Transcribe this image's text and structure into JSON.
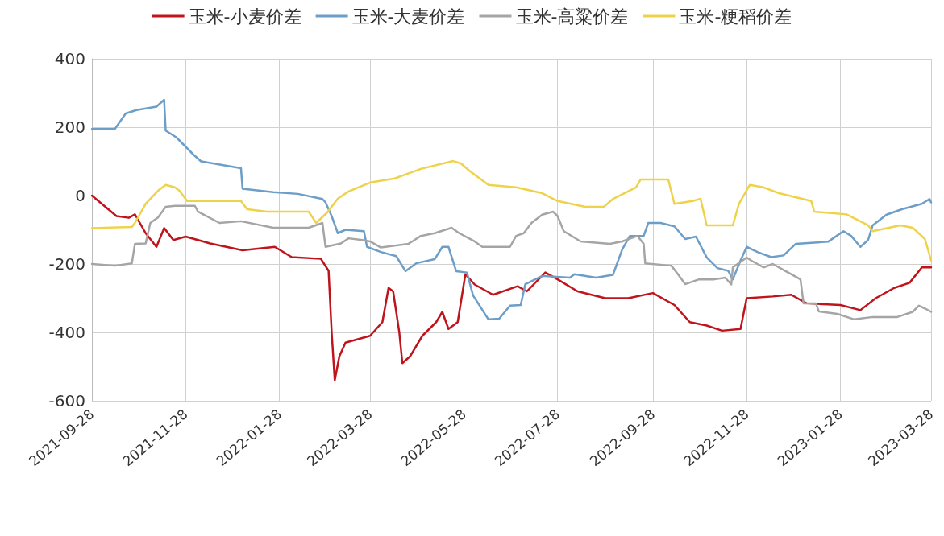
{
  "chart_data": {
    "type": "line",
    "xlim": [
      "2021-09-28",
      "2023-03-28"
    ],
    "xticks": [
      "2021-09-28",
      "2021-11-28",
      "2022-01-28",
      "2022-03-28",
      "2022-05-28",
      "2022-07-28",
      "2022-09-28",
      "2022-11-28",
      "2023-01-28",
      "2023-03-28"
    ],
    "ylim": [
      -600,
      400
    ],
    "yticks": [
      -600,
      -400,
      -200,
      0,
      200,
      400
    ],
    "grid": true,
    "legend": "top",
    "marker": "none",
    "line_style": "solid",
    "series": [
      {
        "name": "玉米-小麦价差",
        "color": "#c0141c",
        "x": [
          "2021-09-28",
          "2021-10-06",
          "2021-10-14",
          "2021-10-22",
          "2021-10-26",
          "2021-11-02",
          "2021-11-09",
          "2021-11-14",
          "2021-11-20",
          "2021-11-28",
          "2021-12-14",
          "2022-01-04",
          "2022-01-25",
          "2022-02-05",
          "2022-02-24",
          "2022-03-01",
          "2022-03-03",
          "2022-03-05",
          "2022-03-08",
          "2022-03-12",
          "2022-03-28",
          "2022-04-05",
          "2022-04-09",
          "2022-04-12",
          "2022-04-16",
          "2022-04-18",
          "2022-04-23",
          "2022-05-01",
          "2022-05-10",
          "2022-05-14",
          "2022-05-18",
          "2022-05-24",
          "2022-05-29",
          "2022-06-04",
          "2022-06-16",
          "2022-07-02",
          "2022-07-08",
          "2022-07-20",
          "2022-07-28",
          "2022-08-10",
          "2022-08-28",
          "2022-09-12",
          "2022-09-28",
          "2022-10-12",
          "2022-10-22",
          "2022-11-02",
          "2022-11-12",
          "2022-11-24",
          "2022-11-28",
          "2022-12-15",
          "2022-12-27",
          "2023-01-06",
          "2023-01-28",
          "2023-02-10",
          "2023-02-20",
          "2023-03-04",
          "2023-03-14",
          "2023-03-22",
          "2023-03-28"
        ],
        "values": [
          0,
          -30,
          -60,
          -65,
          -55,
          -110,
          -150,
          -95,
          -130,
          -120,
          -140,
          -160,
          -150,
          -180,
          -185,
          -220,
          -400,
          -540,
          -470,
          -430,
          -410,
          -370,
          -270,
          -280,
          -400,
          -490,
          -470,
          -410,
          -370,
          -340,
          -390,
          -370,
          -230,
          -260,
          -290,
          -265,
          -280,
          -225,
          -245,
          -280,
          -300,
          -300,
          -285,
          -320,
          -370,
          -380,
          -395,
          -390,
          -300,
          -295,
          -290,
          -315,
          -320,
          -335,
          -300,
          -270,
          -255,
          -210,
          -210
        ]
      },
      {
        "name": "玉米-大麦价差",
        "color": "#6d9ec8",
        "x": [
          "2021-09-28",
          "2021-10-13",
          "2021-10-20",
          "2021-10-27",
          "2021-11-09",
          "2021-11-14",
          "2021-11-15",
          "2021-11-22",
          "2021-12-03",
          "2021-12-08",
          "2021-12-21",
          "2022-01-03",
          "2022-01-04",
          "2022-01-24",
          "2022-02-09",
          "2022-02-25",
          "2022-02-27",
          "2022-03-03",
          "2022-03-07",
          "2022-03-12",
          "2022-03-24",
          "2022-03-26",
          "2022-04-04",
          "2022-04-14",
          "2022-04-20",
          "2022-04-27",
          "2022-05-09",
          "2022-05-14",
          "2022-05-18",
          "2022-05-23",
          "2022-05-30",
          "2022-06-03",
          "2022-06-13",
          "2022-06-20",
          "2022-06-27",
          "2022-07-04",
          "2022-07-07",
          "2022-07-18",
          "2022-08-05",
          "2022-08-08",
          "2022-08-22",
          "2022-09-02",
          "2022-09-08",
          "2022-09-13",
          "2022-09-22",
          "2022-09-25",
          "2022-10-03",
          "2022-10-12",
          "2022-10-19",
          "2022-10-26",
          "2022-11-02",
          "2022-11-09",
          "2022-11-16",
          "2022-11-19",
          "2022-11-24",
          "2022-11-28",
          "2022-12-05",
          "2022-12-14",
          "2022-12-22",
          "2022-12-30",
          "2023-01-20",
          "2023-01-30",
          "2023-02-04",
          "2023-02-10",
          "2023-02-15",
          "2023-02-18",
          "2023-02-27",
          "2023-03-09",
          "2023-03-22",
          "2023-03-27",
          "2023-03-28"
        ],
        "values": [
          195,
          195,
          240,
          250,
          260,
          280,
          190,
          170,
          120,
          100,
          90,
          80,
          20,
          10,
          5,
          -10,
          -20,
          -60,
          -110,
          -100,
          -104,
          -150,
          -165,
          -177,
          -221,
          -198,
          -186,
          -150,
          -150,
          -221,
          -225,
          -292,
          -362,
          -360,
          -322,
          -320,
          -259,
          -235,
          -240,
          -230,
          -240,
          -232,
          -158,
          -118,
          -118,
          -80,
          -80,
          -90,
          -127,
          -120,
          -181,
          -212,
          -220,
          -245,
          -190,
          -150,
          -165,
          -180,
          -175,
          -141,
          -135,
          -104,
          -118,
          -150,
          -130,
          -87,
          -56,
          -40,
          -24,
          -10,
          -20
        ]
      },
      {
        "name": "玉米-高粱价差",
        "color": "#a5a5a5",
        "x": [
          "2021-09-28",
          "2021-10-13",
          "2021-10-24",
          "2021-10-26",
          "2021-11-02",
          "2021-11-05",
          "2021-11-10",
          "2021-11-15",
          "2021-11-21",
          "2021-12-04",
          "2021-12-06",
          "2021-12-20",
          "2022-01-03",
          "2022-01-24",
          "2022-02-16",
          "2022-02-25",
          "2022-02-27",
          "2022-03-09",
          "2022-03-14",
          "2022-03-23",
          "2022-03-28",
          "2022-04-04",
          "2022-04-22",
          "2022-04-30",
          "2022-05-09",
          "2022-05-20",
          "2022-05-25",
          "2022-06-04",
          "2022-06-09",
          "2022-06-27",
          "2022-07-01",
          "2022-07-06",
          "2022-07-11",
          "2022-07-18",
          "2022-07-25",
          "2022-07-28",
          "2022-08-01",
          "2022-08-12",
          "2022-08-31",
          "2022-09-08",
          "2022-09-18",
          "2022-09-22",
          "2022-09-23",
          "2022-10-10",
          "2022-10-14",
          "2022-10-19",
          "2022-10-28",
          "2022-11-07",
          "2022-11-14",
          "2022-11-18",
          "2022-11-19",
          "2022-11-28",
          "2022-12-01",
          "2022-12-09",
          "2022-12-15",
          "2022-12-21",
          "2023-01-02",
          "2023-01-04",
          "2023-01-12",
          "2023-01-14",
          "2023-01-26",
          "2023-02-06",
          "2023-02-18",
          "2023-03-06",
          "2023-03-16",
          "2023-03-20",
          "2023-03-24",
          "2023-03-28"
        ],
        "values": [
          -200,
          -205,
          -198,
          -141,
          -140,
          -80,
          -64,
          -33,
          -30,
          -30,
          -47,
          -80,
          -75,
          -94,
          -94,
          -80,
          -150,
          -140,
          -125,
          -130,
          -134,
          -152,
          -141,
          -118,
          -110,
          -94,
          -110,
          -134,
          -150,
          -150,
          -118,
          -110,
          -80,
          -56,
          -47,
          -60,
          -104,
          -134,
          -141,
          -134,
          -118,
          -141,
          -198,
          -205,
          -228,
          -259,
          -245,
          -245,
          -240,
          -260,
          -210,
          -181,
          -190,
          -210,
          -200,
          -215,
          -245,
          -315,
          -315,
          -339,
          -346,
          -362,
          -355,
          -355,
          -340,
          -322,
          -330,
          -340
        ]
      },
      {
        "name": "玉米-粳稻价差",
        "color": "#eed34a",
        "x": [
          "2021-09-28",
          "2021-10-24",
          "2021-10-26",
          "2021-11-02",
          "2021-11-10",
          "2021-11-15",
          "2021-11-21",
          "2021-11-24",
          "2021-11-29",
          "2022-01-03",
          "2022-01-07",
          "2022-01-20",
          "2022-02-16",
          "2022-02-21",
          "2022-02-28",
          "2022-03-07",
          "2022-03-14",
          "2022-03-28",
          "2022-04-13",
          "2022-04-30",
          "2022-05-21",
          "2022-05-26",
          "2022-06-01",
          "2022-06-13",
          "2022-07-01",
          "2022-07-18",
          "2022-07-28",
          "2022-08-15",
          "2022-08-27",
          "2022-09-02",
          "2022-09-17",
          "2022-09-20",
          "2022-10-08",
          "2022-10-12",
          "2022-10-24",
          "2022-10-29",
          "2022-11-02",
          "2022-11-19",
          "2022-11-23",
          "2022-11-30",
          "2022-12-09",
          "2022-12-19",
          "2023-01-09",
          "2023-01-11",
          "2023-02-01",
          "2023-02-15",
          "2023-02-18",
          "2023-03-08",
          "2023-03-16",
          "2023-03-24",
          "2023-03-28"
        ],
        "values": [
          -95,
          -92,
          -80,
          -24,
          14,
          31,
          24,
          14,
          -16,
          -16,
          -40,
          -47,
          -47,
          -80,
          -50,
          -9,
          12,
          38,
          50,
          78,
          101,
          94,
          71,
          31,
          24,
          7,
          -16,
          -33,
          -33,
          -10,
          24,
          47,
          47,
          -24,
          -16,
          -9,
          -87,
          -87,
          -24,
          31,
          24,
          7,
          -16,
          -47,
          -55,
          -87,
          -104,
          -87,
          -94,
          -127,
          -190
        ]
      }
    ]
  }
}
